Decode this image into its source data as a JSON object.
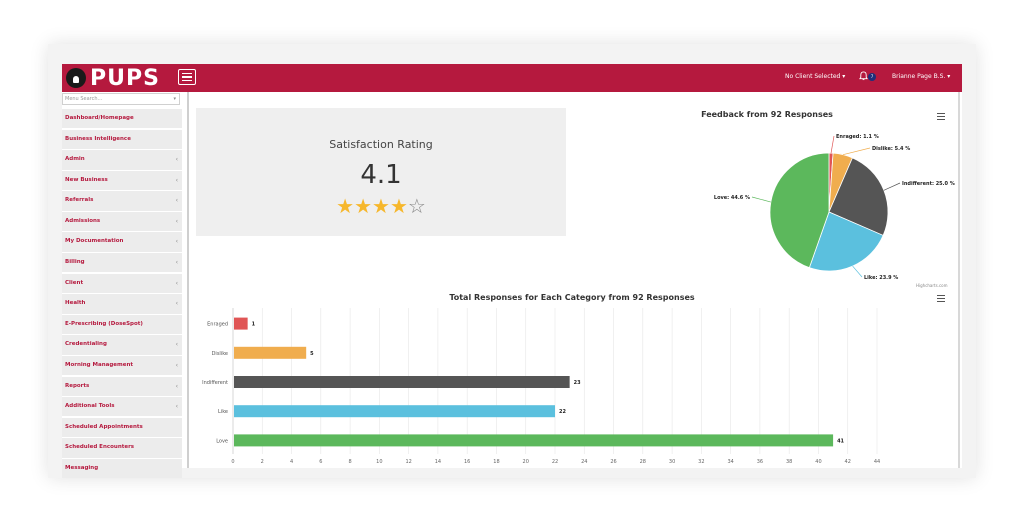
{
  "header": {
    "logo_text": "PUPS",
    "client_select": "No Client Selected ▾",
    "notification_count": "7",
    "user_menu": "Brianne Page B.S. ▾"
  },
  "sidebar": {
    "search_placeholder": "Menu Search...",
    "items": [
      {
        "label": "Dashboard/Homepage",
        "chevron": ""
      },
      {
        "label": "Business Intelligence",
        "chevron": ""
      },
      {
        "label": "Admin",
        "chevron": "‹"
      },
      {
        "label": "New Business",
        "chevron": "‹"
      },
      {
        "label": "Referrals",
        "chevron": "‹"
      },
      {
        "label": "Admissions",
        "chevron": "‹"
      },
      {
        "label": "My Documentation",
        "chevron": "‹"
      },
      {
        "label": "Billing",
        "chevron": "‹"
      },
      {
        "label": "Client",
        "chevron": "‹"
      },
      {
        "label": "Health",
        "chevron": "‹"
      },
      {
        "label": "E-Prescribing (DoseSpot)",
        "chevron": ""
      },
      {
        "label": "Credentialing",
        "chevron": "‹"
      },
      {
        "label": "Morning Management",
        "chevron": "‹"
      },
      {
        "label": "Reports",
        "chevron": "‹"
      },
      {
        "label": "Additional Tools",
        "chevron": "‹"
      },
      {
        "label": "Scheduled Appointments",
        "chevron": ""
      },
      {
        "label": "Scheduled Encounters",
        "chevron": ""
      },
      {
        "label": "Messaging",
        "chevron": ""
      }
    ]
  },
  "rating": {
    "title": "Satisfaction Rating",
    "value": "4.1",
    "stars_full": 4,
    "stars_total": 5
  },
  "credit": "Highcharts.com",
  "colors": {
    "brand": "#b5193e",
    "enraged": "#e05555",
    "dislike": "#f0ad4e",
    "indifferent": "#555555",
    "like": "#5bc0de",
    "love": "#5cb85c"
  },
  "chart_data": [
    {
      "type": "pie",
      "title": "Feedback from 92 Responses",
      "slices": [
        {
          "name": "Enraged",
          "value": 1.1,
          "label": "Enraged: 1.1 %",
          "color": "#e05555"
        },
        {
          "name": "Dislike",
          "value": 5.4,
          "label": "Dislike: 5.4 %",
          "color": "#f0ad4e"
        },
        {
          "name": "Indifferent",
          "value": 25.0,
          "label": "Indifferent: 25.0 %",
          "color": "#555555"
        },
        {
          "name": "Like",
          "value": 23.9,
          "label": "Like: 23.9 %",
          "color": "#5bc0de"
        },
        {
          "name": "Love",
          "value": 44.6,
          "label": "Love: 44.6 %",
          "color": "#5cb85c"
        }
      ]
    },
    {
      "type": "bar",
      "title": "Total Responses for Each Category from 92 Responses",
      "categories": [
        "Enraged",
        "Dislike",
        "Indifferent",
        "Like",
        "Love"
      ],
      "values": [
        1,
        5,
        23,
        22,
        41
      ],
      "colors": [
        "#e05555",
        "#f0ad4e",
        "#555555",
        "#5bc0de",
        "#5cb85c"
      ],
      "xlim": [
        0,
        44
      ],
      "xticks": [
        0,
        2,
        4,
        6,
        8,
        10,
        12,
        14,
        16,
        18,
        20,
        22,
        24,
        26,
        28,
        30,
        32,
        34,
        36,
        38,
        40,
        42,
        44
      ],
      "grid": true,
      "legend": "none"
    }
  ]
}
